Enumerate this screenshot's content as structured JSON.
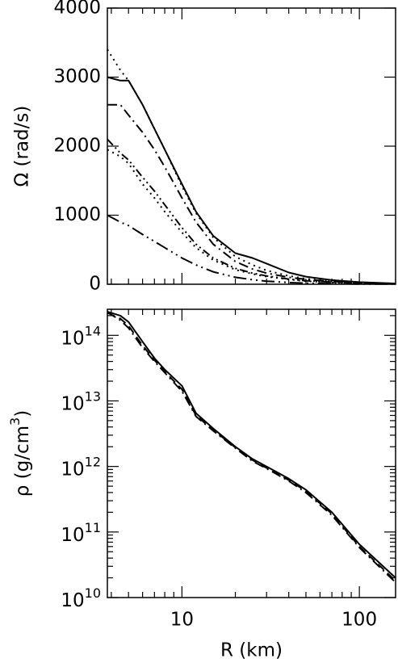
{
  "chart_data": [
    {
      "type": "line",
      "ylabel": "Ω (rad/s)",
      "xlog": true,
      "x": [
        3.8,
        4.5,
        5,
        6,
        7,
        8,
        10,
        12,
        15,
        20,
        25,
        30,
        40,
        50,
        70,
        100,
        160
      ],
      "xlim": [
        3.8,
        160
      ],
      "xticks": [
        10,
        100
      ],
      "xticklabels": false,
      "ylim": [
        0,
        4000
      ],
      "yticks": [
        0,
        1000,
        2000,
        3000,
        4000
      ],
      "series": [
        {
          "color": "#000000",
          "linestyle": "solid",
          "values": [
            3000,
            2950,
            2950,
            2600,
            2250,
            1950,
            1450,
            1050,
            700,
            450,
            380,
            300,
            170,
            110,
            60,
            30,
            10
          ]
        },
        {
          "color": "#000000",
          "linestyle": "dotted",
          "values": [
            3400,
            3100,
            2950,
            2600,
            2250,
            1950,
            1420,
            1030,
            680,
            400,
            280,
            200,
            120,
            80,
            45,
            25,
            10
          ]
        },
        {
          "color": "#000000",
          "linestyle": "dashdot",
          "values": [
            2600,
            2600,
            2450,
            2200,
            1950,
            1700,
            1250,
            900,
            580,
            330,
            220,
            160,
            100,
            70,
            40,
            20,
            8
          ]
        },
        {
          "color": "#000000",
          "linestyle": "dashdotdot",
          "values": [
            2100,
            1900,
            1800,
            1550,
            1350,
            1150,
            820,
            580,
            380,
            230,
            160,
            120,
            75,
            50,
            30,
            15,
            6
          ]
        },
        {
          "color": "#000000",
          "linestyle": "dotted",
          "values": [
            1950,
            1850,
            1750,
            1450,
            1250,
            1050,
            750,
            530,
            350,
            210,
            150,
            110,
            70,
            45,
            25,
            12,
            5
          ]
        },
        {
          "color": "#000000",
          "linestyle": "longdashdotdot",
          "values": [
            1000,
            900,
            850,
            720,
            620,
            530,
            380,
            280,
            180,
            100,
            65,
            45,
            25,
            15,
            8,
            4,
            2
          ]
        }
      ]
    },
    {
      "type": "line",
      "xlabel": "R (km)",
      "ylabel": "ρ (g/cm^3)",
      "xlog": true,
      "ylog": true,
      "x": [
        3.8,
        4.5,
        5,
        6,
        7,
        8,
        10,
        12,
        15,
        20,
        25,
        30,
        40,
        50,
        70,
        100,
        160
      ],
      "xlim": [
        3.8,
        160
      ],
      "xticks": [
        10,
        100
      ],
      "ylim": [
        10000000000,
        250000000000000
      ],
      "yticks": [
        {
          "value": 10000000000,
          "label": "10^10"
        },
        {
          "value": 100000000000,
          "label": "10^11"
        },
        {
          "value": 1000000000000,
          "label": "10^12"
        },
        {
          "value": 10000000000000,
          "label": "10^13"
        },
        {
          "value": 100000000000000,
          "label": "10^14"
        }
      ],
      "series": [
        {
          "color": "#000000",
          "linestyle": "solid",
          "values": [
            230000000000000,
            200000000000000,
            160000000000000,
            80000000000000,
            45000000000000,
            30000000000000,
            17000000000000,
            6500000000000,
            3800000000000,
            2000000000000,
            1300000000000,
            1000000000000,
            650000000000,
            440000000000,
            200000000000,
            65000000000,
            20000000000
          ]
        },
        {
          "color": "#000000",
          "linestyle": "dashed",
          "values": [
            220000000000000,
            180000000000000,
            140000000000000,
            70000000000000,
            42000000000000,
            28000000000000,
            15000000000000,
            6000000000000,
            3600000000000,
            1950000000000,
            1250000000000,
            950000000000,
            620000000000,
            420000000000,
            190000000000,
            60000000000,
            18000000000
          ]
        },
        {
          "color": "#000000",
          "linestyle": "dashdot",
          "values": [
            225000000000000,
            170000000000000,
            130000000000000,
            65000000000000,
            40000000000000,
            27000000000000,
            14000000000000,
            5800000000000,
            3500000000000,
            1900000000000,
            1200000000000,
            930000000000,
            600000000000,
            400000000000,
            180000000000,
            58000000000,
            17000000000
          ]
        }
      ]
    }
  ]
}
